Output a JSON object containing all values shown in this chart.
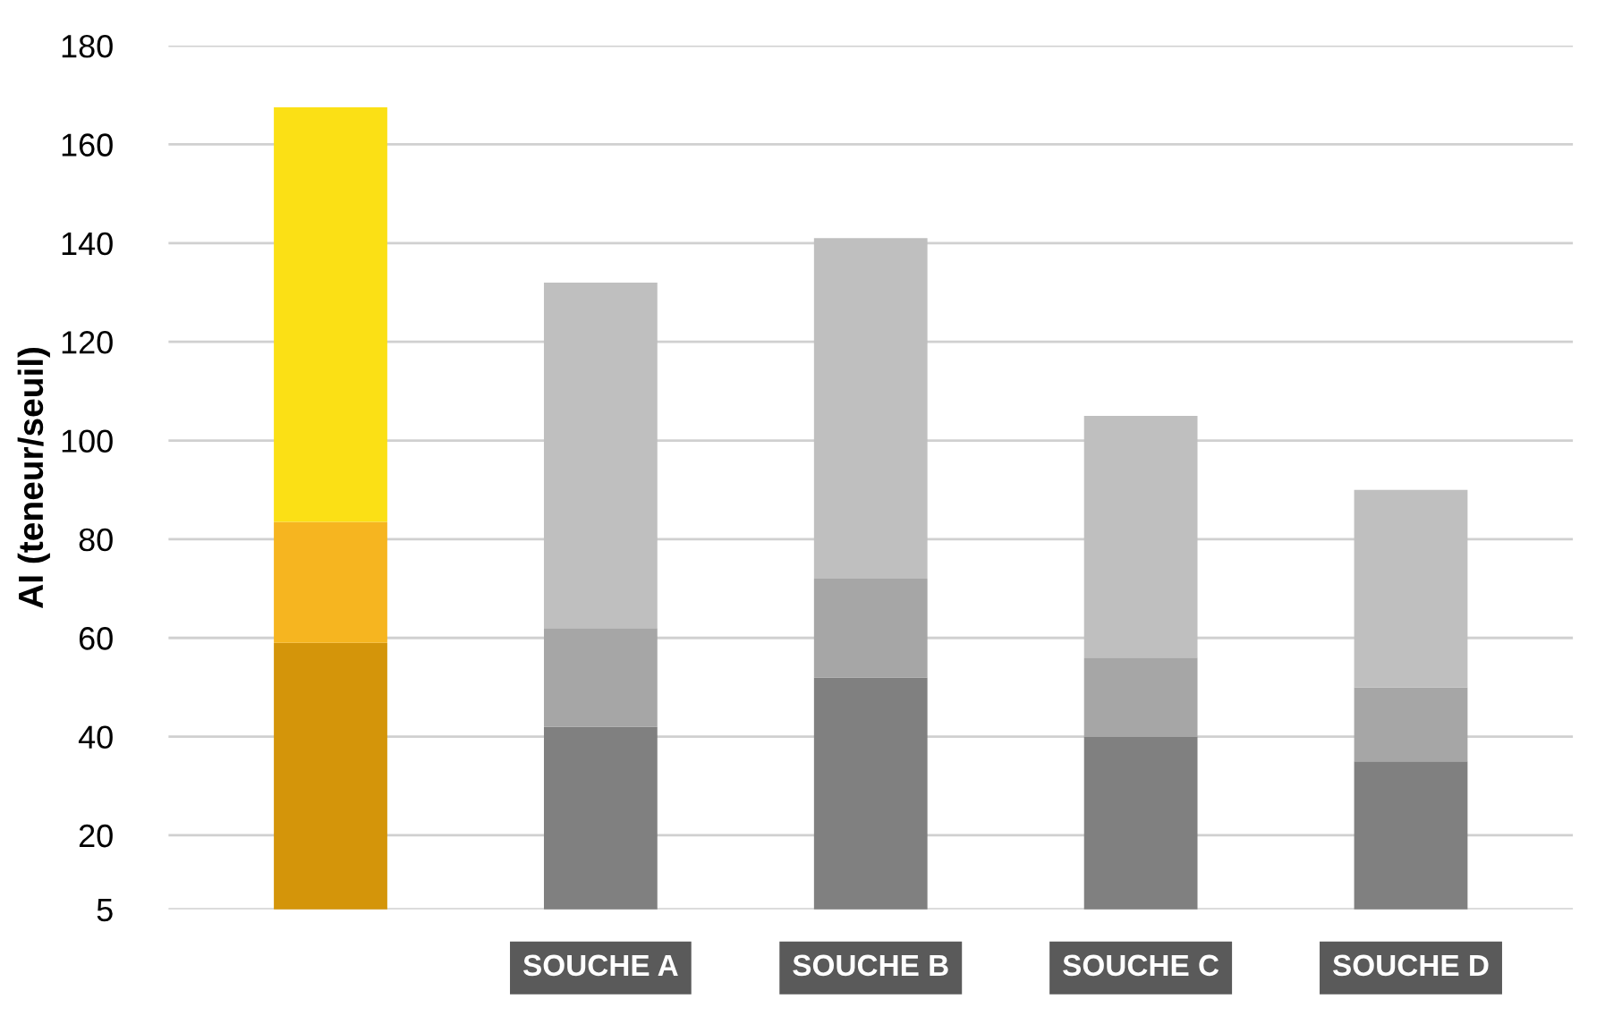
{
  "chart_data": {
    "type": "bar",
    "stacked": true,
    "ylabel": "AI (teneur/seuil)",
    "categories": [
      null,
      "SOUCHE A",
      "SOUCHE B",
      "SOUCHE C",
      "SOUCHE D"
    ],
    "series": [
      {
        "colors": [
          "#d4950a",
          "#808080",
          "#808080",
          "#808080",
          "#808080"
        ],
        "values": [
          59,
          42,
          52,
          40,
          35
        ]
      },
      {
        "colors": [
          "#f6b520",
          "#a6a6a6",
          "#a6a6a6",
          "#a6a6a6",
          "#a6a6a6"
        ],
        "values": [
          24.5,
          20,
          20,
          16,
          15
        ]
      },
      {
        "colors": [
          "#fbe015",
          "#bfbfbf",
          "#bfbfbf",
          "#bfbfbf",
          "#bfbfbf"
        ],
        "values": [
          84,
          70,
          69,
          49,
          40
        ]
      }
    ],
    "ylim": [
      5,
      180
    ],
    "yticks": [
      5,
      20,
      40,
      60,
      80,
      100,
      120,
      140,
      160,
      180
    ],
    "grid": "y"
  }
}
